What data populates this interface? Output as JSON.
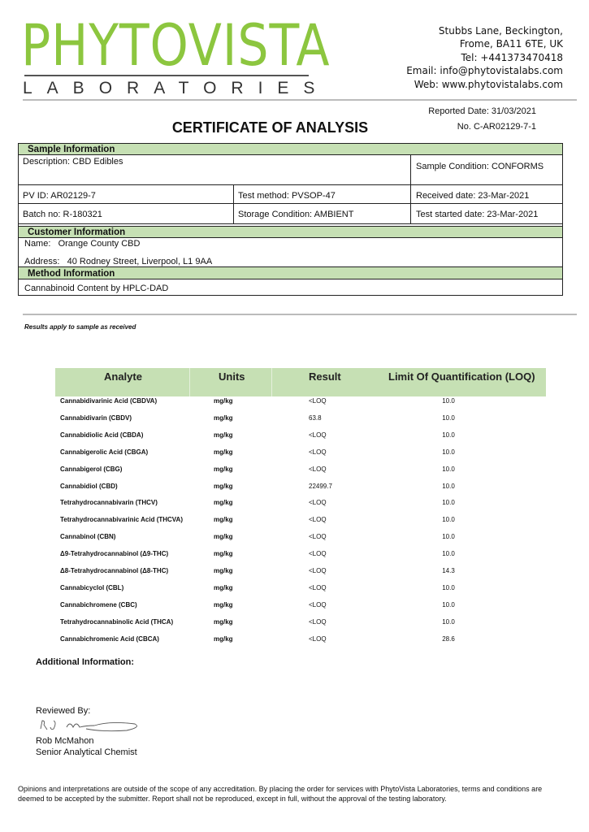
{
  "header": {
    "logo_main": "PHYTOVISTA",
    "logo_sub": "LABORATORIES",
    "contact": [
      "Stubbs Lane, Beckington,",
      "Frome, BA11 6TE, UK",
      "Tel: +441373470418",
      "Email: info@phytovistalabs.com",
      "Web: www.phytovistalabs.com"
    ],
    "brand_color": "#8cc63f"
  },
  "title": "CERTIFICATE OF ANALYSIS",
  "reported_date": "Reported Date: 31/03/2021",
  "certificate_no": "No. C-AR02129-7-1",
  "sample": {
    "heading": "Sample Information",
    "description": "Description: CBD Edibles",
    "condition": "Sample Condition: CONFORMS",
    "pv_id": "PV ID: AR02129-7",
    "test_method": "Test method: PVSOP-47",
    "received": "Received date: 23-Mar-2021",
    "batch": "Batch no: R-180321",
    "storage": "Storage Condition: AMBIENT",
    "test_started": "Test started date: 23-Mar-2021"
  },
  "customer": {
    "heading": "Customer Information",
    "name_label": "Name:",
    "name": "Orange County CBD",
    "address_label": "Address:",
    "address": "40 Rodney Street, Liverpool, L1 9AA"
  },
  "method": {
    "heading": "Method Information",
    "text": "Cannabinoid Content by HPLC-DAD"
  },
  "note": "Results apply to sample as received",
  "results": {
    "headers": [
      "Analyte",
      "Units",
      "Result",
      "Limit Of Quantification (LOQ)"
    ],
    "rows": [
      [
        "Cannabidivarinic Acid (CBDVA)",
        "mg/kg",
        "<LOQ",
        "10.0"
      ],
      [
        "Cannabidivarin (CBDV)",
        "mg/kg",
        "63.8",
        "10.0"
      ],
      [
        "Cannabidiolic Acid (CBDA)",
        "mg/kg",
        "<LOQ",
        "10.0"
      ],
      [
        "Cannabigerolic Acid (CBGA)",
        "mg/kg",
        "<LOQ",
        "10.0"
      ],
      [
        "Cannabigerol (CBG)",
        "mg/kg",
        "<LOQ",
        "10.0"
      ],
      [
        "Cannabidiol (CBD)",
        "mg/kg",
        "22499.7",
        "10.0"
      ],
      [
        "Tetrahydrocannabivarin (THCV)",
        "mg/kg",
        "<LOQ",
        "10.0"
      ],
      [
        "Tetrahydrocannabivarinic Acid (THCVA)",
        "mg/kg",
        "<LOQ",
        "10.0"
      ],
      [
        "Cannabinol (CBN)",
        "mg/kg",
        "<LOQ",
        "10.0"
      ],
      [
        "Δ9-Tetrahydrocannabinol (Δ9-THC)",
        "mg/kg",
        "<LOQ",
        "10.0"
      ],
      [
        "Δ8-Tetrahydrocannabinol (Δ8-THC)",
        "mg/kg",
        "<LOQ",
        "14.3"
      ],
      [
        "Cannabicyclol (CBL)",
        "mg/kg",
        "<LOQ",
        "10.0"
      ],
      [
        "Cannabichromene (CBC)",
        "mg/kg",
        "<LOQ",
        "10.0"
      ],
      [
        "Tetrahydrocannabinolic Acid (THCA)",
        "mg/kg",
        "<LOQ",
        "10.0"
      ],
      [
        "Cannabichromenic Acid (CBCA)",
        "mg/kg",
        "<LOQ",
        "28.6"
      ]
    ]
  },
  "additional_info": "Additional Information:",
  "reviewed_by": "Reviewed By:",
  "signature_text": "R J McMahon",
  "reviewer_name": "Rob McMahon",
  "reviewer_title": "Senior Analytical Chemist",
  "footer": "Opinions and interpretations are outside of the scope of any accreditation. By placing the order for services with PhytoVista Laboratories, terms and conditions are deemed to be accepted by the submitter. Report shall not be reproduced, except in full, without the approval of the testing laboratory."
}
